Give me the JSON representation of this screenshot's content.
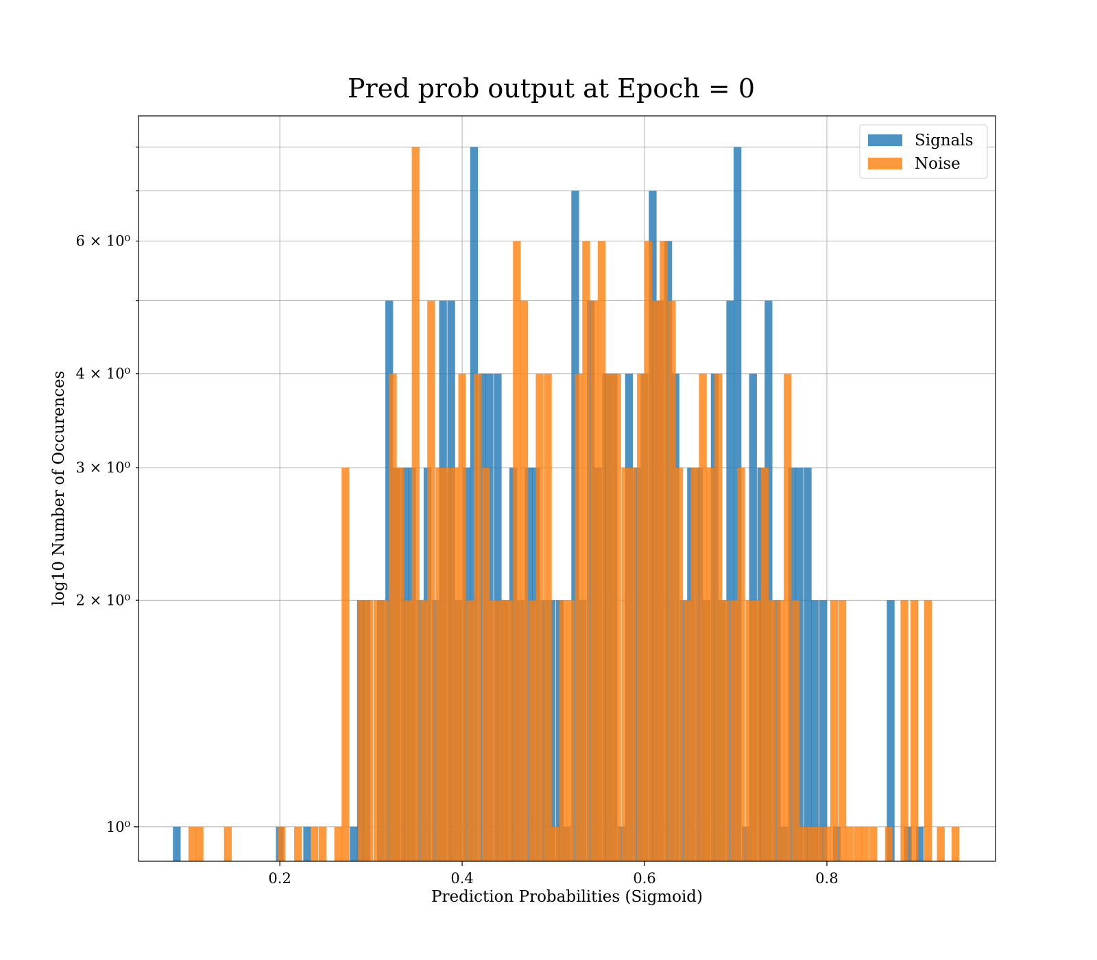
{
  "chart_data": {
    "type": "bar",
    "title": "Pred prob output at Epoch = 0",
    "xlabel": "Prediction Probabilities (Sigmoid)",
    "ylabel": "log10 Number of Occurences",
    "yscale": "log",
    "xlim": [
      0.045,
      0.985
    ],
    "ylim": [
      0.9,
      8.8
    ],
    "grid": true,
    "legend": "top-right",
    "x_ticks": [
      {
        "value": 0.2,
        "label": "0.2"
      },
      {
        "value": 0.4,
        "label": "0.4"
      },
      {
        "value": 0.6,
        "label": "0.6"
      },
      {
        "value": 0.8,
        "label": "0.8"
      }
    ],
    "y_major_ticks": [
      {
        "value": 1,
        "label": "10⁰"
      }
    ],
    "y_minor_ticks": [
      {
        "value": 2,
        "label": "2 × 10⁰"
      },
      {
        "value": 3,
        "label": "3 × 10⁰"
      },
      {
        "value": 4,
        "label": "4 × 10⁰"
      },
      {
        "value": 5,
        "label": ""
      },
      {
        "value": 6,
        "label": "6 × 10⁰"
      },
      {
        "value": 7,
        "label": ""
      },
      {
        "value": 8,
        "label": ""
      }
    ],
    "series": [
      {
        "name": "Signals",
        "color": "#1f77b4",
        "opacity": 0.8,
        "bin_width": 0.0085,
        "x": [
          0.087,
          0.2,
          0.23,
          0.281,
          0.289,
          0.295,
          0.311,
          0.32,
          0.328,
          0.337,
          0.345,
          0.354,
          0.362,
          0.371,
          0.379,
          0.388,
          0.396,
          0.405,
          0.413,
          0.422,
          0.43,
          0.439,
          0.447,
          0.456,
          0.464,
          0.473,
          0.481,
          0.49,
          0.498,
          0.507,
          0.515,
          0.524,
          0.532,
          0.541,
          0.549,
          0.558,
          0.566,
          0.575,
          0.583,
          0.592,
          0.6,
          0.609,
          0.617,
          0.626,
          0.634,
          0.643,
          0.651,
          0.66,
          0.668,
          0.677,
          0.685,
          0.694,
          0.702,
          0.711,
          0.719,
          0.728,
          0.736,
          0.745,
          0.753,
          0.762,
          0.77,
          0.779,
          0.787,
          0.796,
          0.811,
          0.87,
          0.889,
          0.902
        ],
        "values": [
          1,
          1,
          1,
          1,
          2,
          2,
          2,
          5,
          3,
          3,
          3,
          2,
          3,
          2,
          5,
          5,
          2,
          3,
          8,
          4,
          4,
          4,
          2,
          3,
          2,
          3,
          3,
          2,
          2,
          2,
          1,
          7,
          2,
          5,
          3,
          4,
          4,
          1,
          4,
          3,
          4,
          7,
          5,
          6,
          4,
          2,
          3,
          3,
          2,
          4,
          2,
          5,
          8,
          1,
          4,
          3,
          5,
          2,
          1,
          3,
          3,
          3,
          2,
          2,
          1,
          2,
          1,
          1
        ]
      },
      {
        "name": "Noise",
        "color": "#ff7f0e",
        "opacity": 0.8,
        "bin_width": 0.0085,
        "x": [
          0.104,
          0.112,
          0.143,
          0.202,
          0.22,
          0.238,
          0.247,
          0.264,
          0.272,
          0.29,
          0.298,
          0.307,
          0.315,
          0.324,
          0.332,
          0.341,
          0.349,
          0.358,
          0.366,
          0.375,
          0.383,
          0.392,
          0.4,
          0.409,
          0.417,
          0.426,
          0.434,
          0.443,
          0.451,
          0.46,
          0.468,
          0.477,
          0.485,
          0.494,
          0.502,
          0.511,
          0.519,
          0.528,
          0.536,
          0.545,
          0.553,
          0.562,
          0.57,
          0.579,
          0.587,
          0.596,
          0.604,
          0.613,
          0.621,
          0.63,
          0.638,
          0.647,
          0.655,
          0.664,
          0.672,
          0.681,
          0.689,
          0.698,
          0.706,
          0.715,
          0.723,
          0.732,
          0.74,
          0.749,
          0.757,
          0.766,
          0.774,
          0.783,
          0.791,
          0.8,
          0.808,
          0.817,
          0.825,
          0.834,
          0.842,
          0.851,
          0.868,
          0.885,
          0.896,
          0.911,
          0.925,
          0.941
        ],
        "values": [
          1,
          1,
          1,
          1,
          1,
          1,
          1,
          1,
          3,
          2,
          2,
          2,
          2,
          4,
          3,
          2,
          8,
          2,
          5,
          3,
          3,
          3,
          4,
          2,
          4,
          3,
          2,
          2,
          2,
          6,
          5,
          2,
          4,
          4,
          1,
          2,
          2,
          4,
          6,
          5,
          6,
          4,
          4,
          3,
          3,
          4,
          6,
          5,
          6,
          5,
          3,
          2,
          3,
          4,
          3,
          4,
          2,
          2,
          3,
          2,
          2,
          3,
          2,
          2,
          4,
          2,
          1,
          1,
          1,
          1,
          2,
          2,
          1,
          1,
          1,
          1,
          1,
          2,
          2,
          2,
          1,
          1
        ]
      }
    ]
  }
}
